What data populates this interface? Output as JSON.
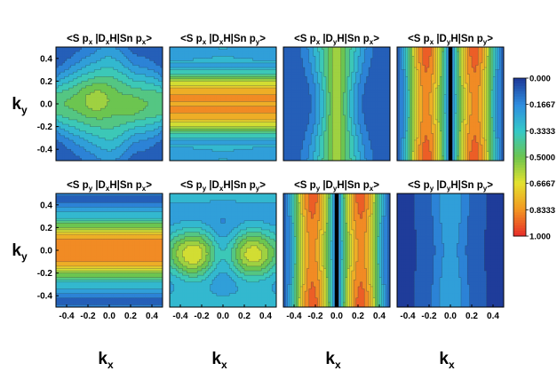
{
  "colors": {
    "colormap": [
      "#1f3c9a",
      "#2f8fe0",
      "#35c9c9",
      "#6cc550",
      "#e4e22f",
      "#f39a23",
      "#e8322a"
    ],
    "contour_line": "#2a3a4a",
    "node_line": "#000000"
  },
  "chart_data": [
    {
      "type": "heatmap",
      "title_parts": {
        "left": "<S p",
        "sub1": "x",
        "mid1": " |D",
        "sub2": "x",
        "mid2": "H|Sn p",
        "sub3": "x",
        "end": ">"
      },
      "xlim": [
        -0.5,
        0.5
      ],
      "ylim": [
        -0.5,
        0.5
      ],
      "pattern": "bulge_center_fading_lr",
      "node_line_x": null
    },
    {
      "type": "heatmap",
      "title_parts": {
        "left": "<S p",
        "sub1": "x",
        "mid1": " |D",
        "sub2": "x",
        "mid2": "H|Sn p",
        "sub3": "y",
        "end": ">"
      },
      "xlim": [
        -0.5,
        0.5
      ],
      "ylim": [
        -0.5,
        0.5
      ],
      "pattern": "horizontal_bands_high_edges",
      "node_line_x": null
    },
    {
      "type": "heatmap",
      "title_parts": {
        "left": "<S p",
        "sub1": "x",
        "mid1": " |D",
        "sub2": "y",
        "mid2": "H|Sn p",
        "sub3": "x",
        "end": ">"
      },
      "xlim": [
        -0.5,
        0.5
      ],
      "ylim": [
        -0.5,
        0.5
      ],
      "pattern": "vertical_center_blob",
      "node_line_x": null
    },
    {
      "type": "heatmap",
      "title_parts": {
        "left": "<S p",
        "sub1": "x",
        "mid1": " |D",
        "sub2": "y",
        "mid2": "H|Sn p",
        "sub3": "y",
        "end": ">"
      },
      "xlim": [
        -0.5,
        0.5
      ],
      "ylim": [
        -0.5,
        0.5
      ],
      "pattern": "vertical_stripes_node",
      "node_line_x": 0.0
    },
    {
      "type": "heatmap",
      "title_parts": {
        "left": "<S p",
        "sub1": "y",
        "mid1": " |D",
        "sub2": "x",
        "mid2": "H|Sn p",
        "sub3": "x",
        "end": ">"
      },
      "xlim": [
        -0.5,
        0.5
      ],
      "ylim": [
        -0.5,
        0.5
      ],
      "pattern": "horizontal_bands_high_edges_strong",
      "node_line_x": null
    },
    {
      "type": "heatmap",
      "title_parts": {
        "left": "<S p",
        "sub1": "y",
        "mid1": " |D",
        "sub2": "x",
        "mid2": "H|Sn p",
        "sub3": "y",
        "end": ">"
      },
      "xlim": [
        -0.5,
        0.5
      ],
      "ylim": [
        -0.5,
        0.5
      ],
      "pattern": "two_side_blobs",
      "node_line_x": null
    },
    {
      "type": "heatmap",
      "title_parts": {
        "left": "<S p",
        "sub1": "y",
        "mid1": " |D",
        "sub2": "y",
        "mid2": "H|Sn p",
        "sub3": "x",
        "end": ">"
      },
      "xlim": [
        -0.5,
        0.5
      ],
      "ylim": [
        -0.5,
        0.5
      ],
      "pattern": "vertical_stripes_node",
      "node_line_x": 0.0
    },
    {
      "type": "heatmap",
      "title_parts": {
        "left": "<S p",
        "sub1": "y",
        "mid1": " |D",
        "sub2": "y",
        "mid2": "H|Sn p",
        "sub3": "y",
        "end": ">"
      },
      "xlim": [
        -0.5,
        0.5
      ],
      "ylim": [
        -0.5,
        0.5
      ],
      "pattern": "low_with_cyan_center",
      "node_line_x": null
    }
  ],
  "axes": {
    "y_ticks": [
      "0.4",
      "0.2",
      "0.0",
      "-0.2",
      "-0.4"
    ],
    "y_tick_values": [
      0.4,
      0.2,
      0.0,
      -0.2,
      -0.4
    ],
    "x_ticks": [
      "-0.4",
      "-0.2",
      "0.0",
      "0.2",
      "0.4"
    ],
    "x_tick_values": [
      -0.4,
      -0.2,
      0.0,
      0.2,
      0.4
    ],
    "y_label_main": "k",
    "y_label_sub": "y",
    "x_label_main": "k",
    "x_label_sub": "x"
  },
  "colorbar": {
    "ticks": [
      "0.000",
      "0.1667",
      "0.3333",
      "0.5000",
      "0.6667",
      "0.8333",
      "1.000"
    ],
    "values": [
      0.0,
      0.1667,
      0.3333,
      0.5,
      0.6667,
      0.8333,
      1.0
    ]
  }
}
